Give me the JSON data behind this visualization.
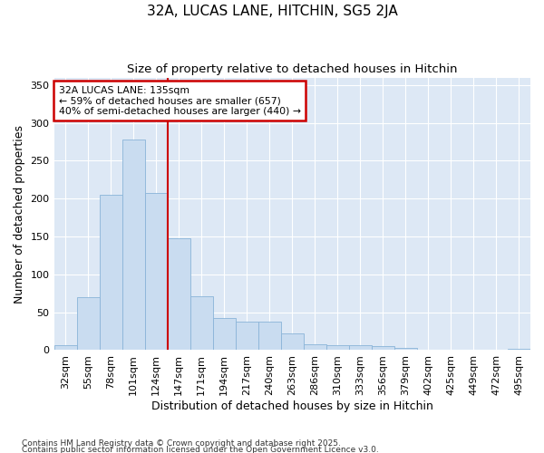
{
  "title1": "32A, LUCAS LANE, HITCHIN, SG5 2JA",
  "title2": "Size of property relative to detached houses in Hitchin",
  "xlabel": "Distribution of detached houses by size in Hitchin",
  "ylabel": "Number of detached properties",
  "categories": [
    "32sqm",
    "55sqm",
    "78sqm",
    "101sqm",
    "124sqm",
    "147sqm",
    "171sqm",
    "194sqm",
    "217sqm",
    "240sqm",
    "263sqm",
    "286sqm",
    "310sqm",
    "333sqm",
    "356sqm",
    "379sqm",
    "402sqm",
    "425sqm",
    "449sqm",
    "472sqm",
    "495sqm"
  ],
  "values": [
    7,
    70,
    205,
    278,
    207,
    148,
    71,
    42,
    38,
    38,
    22,
    8,
    7,
    6,
    5,
    3,
    1,
    1,
    0,
    0,
    2
  ],
  "bar_color": "#c9dcf0",
  "bar_edge_color": "#8ab4d8",
  "vline_x": 4.5,
  "vline_color": "#cc0000",
  "annotation_text": "32A LUCAS LANE: 135sqm\n← 59% of detached houses are smaller (657)\n40% of semi-detached houses are larger (440) →",
  "annotation_box_color": "#cc0000",
  "ylim": [
    0,
    360
  ],
  "yticks": [
    0,
    50,
    100,
    150,
    200,
    250,
    300,
    350
  ],
  "plot_bg_color": "#dde8f5",
  "fig_bg_color": "#ffffff",
  "grid_color": "#ffffff",
  "footer1": "Contains HM Land Registry data © Crown copyright and database right 2025.",
  "footer2": "Contains public sector information licensed under the Open Government Licence v3.0."
}
